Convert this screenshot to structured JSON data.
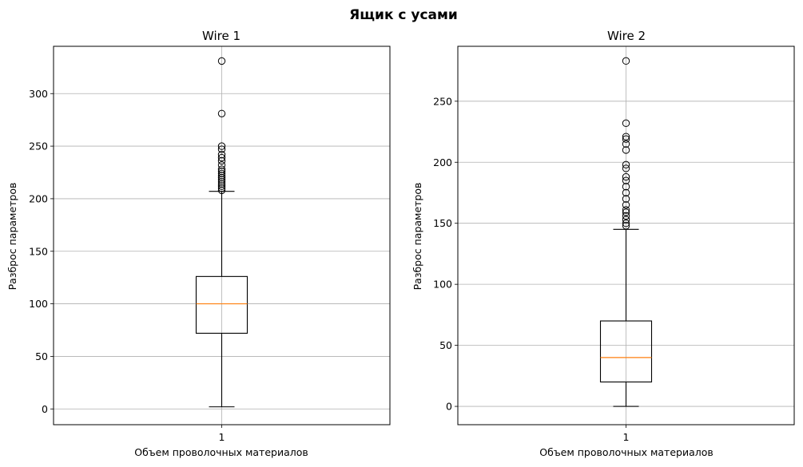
{
  "suptitle": "Ящик с усами",
  "colors": {
    "box": "#000000",
    "median": "#ff7f0e",
    "grid": "#b0b0b0",
    "background": "#ffffff"
  },
  "chart_data": [
    {
      "type": "box",
      "title": "Wire 1",
      "xlabel": "Объем проволочных материалов",
      "ylabel": "Разброс параметров",
      "categories": [
        "1"
      ],
      "ylim": [
        -15,
        345
      ],
      "yticks": [
        0,
        50,
        100,
        150,
        200,
        250,
        300
      ],
      "grid": true,
      "box": {
        "whisker_low": 2,
        "q1": 72,
        "median": 100,
        "q3": 126,
        "whisker_high": 207,
        "fliers": [
          208,
          210,
          212,
          214,
          216,
          218,
          220,
          222,
          224,
          226,
          228,
          232,
          236,
          239,
          242,
          247,
          250,
          281,
          331
        ]
      }
    },
    {
      "type": "box",
      "title": "Wire 2",
      "xlabel": "Объем проволочных материалов",
      "ylabel": "Разброс параметров",
      "categories": [
        "1"
      ],
      "ylim": [
        -15,
        295
      ],
      "yticks": [
        0,
        50,
        100,
        150,
        200,
        250
      ],
      "grid": true,
      "box": {
        "whisker_low": 0,
        "q1": 20,
        "median": 40,
        "q3": 70,
        "whisker_high": 145,
        "fliers": [
          148,
          150,
          153,
          156,
          159,
          161,
          165,
          170,
          175,
          180,
          185,
          188,
          195,
          198,
          210,
          215,
          219,
          221,
          232,
          283
        ]
      }
    }
  ]
}
